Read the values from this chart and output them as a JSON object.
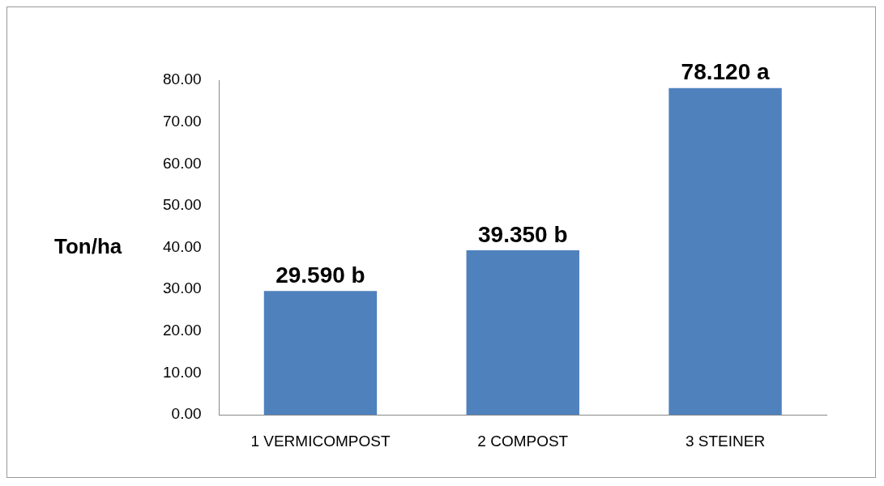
{
  "chart_data": {
    "type": "bar",
    "ylabel": "Ton/ha",
    "categories": [
      "1 VERMICOMPOST",
      "2 COMPOST",
      "3 STEINER"
    ],
    "values": [
      29.59,
      39.35,
      78.12
    ],
    "value_labels": [
      "29.590 b",
      "39.350 b",
      "78.120 a"
    ],
    "color": "#4f81bd",
    "ylim": [
      0,
      80
    ],
    "yticks": [
      {
        "value": 0,
        "label": "0.00"
      },
      {
        "value": 10,
        "label": "10.00"
      },
      {
        "value": 20,
        "label": "20.00"
      },
      {
        "value": 30,
        "label": "30.00"
      },
      {
        "value": 40,
        "label": "40.00"
      },
      {
        "value": 50,
        "label": "50.00"
      },
      {
        "value": 60,
        "label": "60.00"
      },
      {
        "value": 70,
        "label": "70.00"
      },
      {
        "value": 80,
        "label": "80.00"
      }
    ],
    "grid": false,
    "legend": false
  }
}
